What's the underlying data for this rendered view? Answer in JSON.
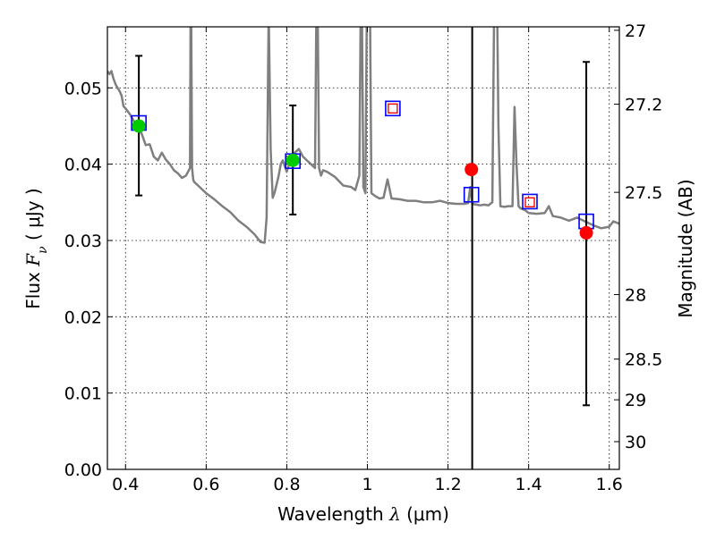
{
  "chart_data": {
    "type": "scatter",
    "xlabel": {
      "prefix": "Wavelength ",
      "symbol": "λ",
      "unit": " (μm)"
    },
    "ylabel": {
      "prefix": "Flux ",
      "symbol": "F",
      "subscript": "ν",
      "unit": " ( μJy )"
    },
    "y2label": "Magnitude (AB)",
    "xlim": [
      0.355,
      1.625
    ],
    "ylim": [
      0.0,
      0.058
    ],
    "grid": true,
    "x_ticks": [
      {
        "value": 0.4,
        "label": "0.4"
      },
      {
        "value": 0.6,
        "label": "0.6"
      },
      {
        "value": 0.8,
        "label": "0.8"
      },
      {
        "value": 1.0,
        "label": "1"
      },
      {
        "value": 1.2,
        "label": "1.2"
      },
      {
        "value": 1.4,
        "label": "1.4"
      },
      {
        "value": 1.6,
        "label": "1.6"
      }
    ],
    "y_ticks": [
      {
        "value": 0.0,
        "label": "0.00"
      },
      {
        "value": 0.01,
        "label": "0.01"
      },
      {
        "value": 0.02,
        "label": "0.02"
      },
      {
        "value": 0.03,
        "label": "0.03"
      },
      {
        "value": 0.04,
        "label": "0.04"
      },
      {
        "value": 0.05,
        "label": "0.05"
      }
    ],
    "y2_ticks": [
      {
        "mag": 27,
        "label": "27"
      },
      {
        "mag": 27.2,
        "label": "27.2"
      },
      {
        "mag": 27.5,
        "label": "27.5"
      },
      {
        "mag": 28,
        "label": "28"
      },
      {
        "mag": 28.5,
        "label": "28.5"
      },
      {
        "mag": 29,
        "label": "29"
      },
      {
        "mag": 30,
        "label": "30"
      }
    ],
    "vertical_line": {
      "x": 1.26,
      "color": "#000000"
    },
    "model_spectrum": {
      "color": "#7f7f7f",
      "x": [
        0.355,
        0.36,
        0.365,
        0.37,
        0.375,
        0.38,
        0.385,
        0.39,
        0.395,
        0.4,
        0.41,
        0.42,
        0.43,
        0.44,
        0.45,
        0.46,
        0.47,
        0.48,
        0.49,
        0.5,
        0.51,
        0.52,
        0.53,
        0.54,
        0.55,
        0.56,
        0.562,
        0.565,
        0.568,
        0.57,
        0.58,
        0.6,
        0.62,
        0.64,
        0.66,
        0.68,
        0.7,
        0.72,
        0.735,
        0.745,
        0.75,
        0.755,
        0.76,
        0.765,
        0.77,
        0.78,
        0.785,
        0.79,
        0.8,
        0.81,
        0.82,
        0.83,
        0.84,
        0.85,
        0.86,
        0.87,
        0.875,
        0.88,
        0.885,
        0.89,
        0.9,
        0.92,
        0.94,
        0.96,
        0.97,
        0.98,
        0.985,
        0.99,
        0.995,
        1.0,
        1.005,
        1.01,
        1.02,
        1.03,
        1.04,
        1.05,
        1.06,
        1.08,
        1.1,
        1.12,
        1.14,
        1.16,
        1.18,
        1.2,
        1.22,
        1.24,
        1.25,
        1.255,
        1.26,
        1.27,
        1.28,
        1.29,
        1.3,
        1.31,
        1.315,
        1.32,
        1.325,
        1.33,
        1.34,
        1.35,
        1.36,
        1.365,
        1.37,
        1.375,
        1.38,
        1.39,
        1.4,
        1.42,
        1.44,
        1.45,
        1.46,
        1.48,
        1.5,
        1.52,
        1.54,
        1.56,
        1.58,
        1.6,
        1.61,
        1.625
      ],
      "y": [
        0.0522,
        0.0518,
        0.0522,
        0.0512,
        0.0505,
        0.05,
        0.0496,
        0.049,
        0.0476,
        0.0473,
        0.0466,
        0.0457,
        0.0447,
        0.044,
        0.0425,
        0.0426,
        0.041,
        0.0405,
        0.0415,
        0.0406,
        0.04,
        0.0392,
        0.0388,
        0.0382,
        0.0385,
        0.0395,
        0.068,
        0.0395,
        0.038,
        0.0377,
        0.0372,
        0.0362,
        0.0354,
        0.0345,
        0.0337,
        0.0326,
        0.0318,
        0.0308,
        0.0298,
        0.0297,
        0.033,
        0.06,
        0.042,
        0.0356,
        0.0363,
        0.0385,
        0.04,
        0.0405,
        0.039,
        0.0408,
        0.0415,
        0.042,
        0.041,
        0.0405,
        0.04,
        0.0395,
        0.07,
        0.0395,
        0.0385,
        0.0392,
        0.039,
        0.0383,
        0.0372,
        0.037,
        0.0366,
        0.0385,
        0.07,
        0.037,
        0.0362,
        0.07,
        0.07,
        0.0362,
        0.0358,
        0.0355,
        0.0356,
        0.038,
        0.0355,
        0.0354,
        0.0352,
        0.0352,
        0.035,
        0.035,
        0.0352,
        0.0349,
        0.0348,
        0.0348,
        0.0349,
        0.037,
        0.0348,
        0.0347,
        0.0346,
        0.0347,
        0.0346,
        0.035,
        0.064,
        0.07,
        0.045,
        0.0345,
        0.0344,
        0.0345,
        0.0345,
        0.0475,
        0.04,
        0.0345,
        0.0342,
        0.034,
        0.0336,
        0.0335,
        0.0336,
        0.0345,
        0.0332,
        0.033,
        0.0326,
        0.033,
        0.0325,
        0.032,
        0.0316,
        0.0318,
        0.0325,
        0.0322
      ]
    },
    "model_photometry": {
      "edge_color": "#0000ff",
      "points": [
        {
          "x": 0.433,
          "y": 0.0454
        },
        {
          "x": 0.815,
          "y": 0.0404
        },
        {
          "x": 1.063,
          "y": 0.0473
        },
        {
          "x": 1.258,
          "y": 0.036
        },
        {
          "x": 1.403,
          "y": 0.0351
        },
        {
          "x": 1.543,
          "y": 0.0325
        }
      ]
    },
    "open_markers": {
      "edge_color": "#ff0000",
      "points": [
        {
          "x": 1.063,
          "y": 0.0473
        },
        {
          "x": 1.403,
          "y": 0.035
        }
      ]
    },
    "detections": {
      "color": "#00cc00",
      "points": [
        {
          "x": 0.433,
          "y": 0.045,
          "yerr_low": 0.0359,
          "yerr_high": 0.0542
        },
        {
          "x": 0.815,
          "y": 0.0405,
          "yerr_low": 0.0334,
          "yerr_high": 0.0477
        }
      ]
    },
    "other_measurements": {
      "color": "#ff0000",
      "points": [
        {
          "x": 1.258,
          "y": 0.0393
        },
        {
          "x": 1.543,
          "y": 0.031,
          "yerr_low": 0.0084,
          "yerr_high": 0.0534
        }
      ]
    }
  }
}
